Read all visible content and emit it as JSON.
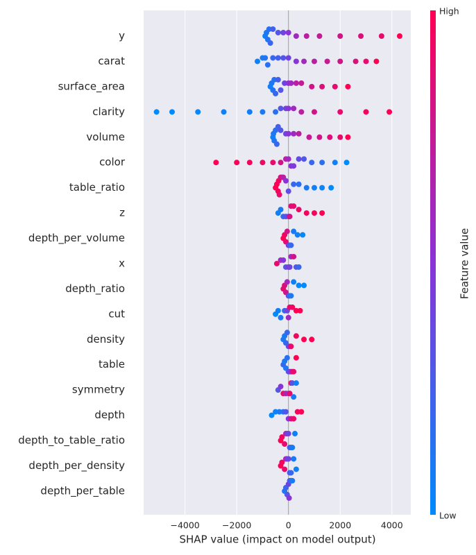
{
  "chart_data": {
    "type": "beeswarm",
    "xlabel": "SHAP value (impact on model output)",
    "xlim": [
      -5600,
      4730
    ],
    "xticks": [
      {
        "value": -4000,
        "label": "−4000"
      },
      {
        "value": -2000,
        "label": "−2000"
      },
      0,
      2000,
      4000
    ],
    "grid": true,
    "colormap": [
      "#008afb",
      "#8a33d8",
      "#ff0052"
    ],
    "colorbar": {
      "label": "Feature value",
      "high": "High",
      "low": "Low"
    },
    "features": [
      {
        "name": "y",
        "shap": [
          -900,
          -850,
          -800,
          -750,
          -700,
          -600,
          -400,
          -200,
          0,
          300,
          700,
          1200,
          2000,
          2800,
          3600,
          4300
        ],
        "feature_value": [
          0.05,
          0.1,
          0.12,
          0.15,
          0.2,
          0.25,
          0.3,
          0.4,
          0.5,
          0.6,
          0.7,
          0.75,
          0.8,
          0.85,
          0.9,
          1
        ]
      },
      {
        "name": "carat",
        "shap": [
          -1200,
          -1000,
          -900,
          -800,
          -600,
          -400,
          -200,
          0,
          300,
          600,
          1000,
          1500,
          2000,
          2600,
          3000,
          3400
        ],
        "feature_value": [
          0.05,
          0.1,
          0.12,
          0.15,
          0.2,
          0.25,
          0.3,
          0.4,
          0.5,
          0.6,
          0.7,
          0.75,
          0.8,
          0.85,
          0.9,
          1
        ]
      },
      {
        "name": "surface_area",
        "shap": [
          -700,
          -650,
          -600,
          -550,
          -500,
          -400,
          -300,
          -150,
          0,
          100,
          300,
          500,
          900,
          1300,
          1800,
          2300
        ],
        "feature_value": [
          0.05,
          0.1,
          0.12,
          0.15,
          0.2,
          0.25,
          0.3,
          0.4,
          0.5,
          0.6,
          0.7,
          0.75,
          0.8,
          0.85,
          0.9,
          1
        ]
      },
      {
        "name": "clarity",
        "shap": [
          -5100,
          -4500,
          -3500,
          -2500,
          -1500,
          -1000,
          -500,
          -300,
          -100,
          0,
          200,
          500,
          1000,
          2000,
          3000,
          3900
        ],
        "feature_value": [
          0,
          0,
          0.02,
          0.05,
          0.08,
          0.1,
          0.15,
          0.3,
          0.4,
          0.5,
          0.6,
          0.7,
          0.8,
          0.9,
          0.95,
          1
        ]
      },
      {
        "name": "volume",
        "shap": [
          -600,
          -580,
          -550,
          -500,
          -450,
          -400,
          -300,
          -100,
          0,
          200,
          400,
          800,
          1200,
          1600,
          2000,
          2300
        ],
        "feature_value": [
          0.05,
          0.1,
          0.12,
          0.15,
          0.2,
          0.25,
          0.3,
          0.4,
          0.5,
          0.6,
          0.7,
          0.75,
          0.8,
          0.85,
          0.9,
          1
        ]
      },
      {
        "name": "color",
        "shap": [
          -2800,
          -2000,
          -1500,
          -1000,
          -600,
          -300,
          -100,
          0,
          100,
          200,
          400,
          600,
          900,
          1300,
          1800,
          2250
        ],
        "feature_value": [
          1,
          0.98,
          0.95,
          0.93,
          0.9,
          0.8,
          0.7,
          0.6,
          0.5,
          0.45,
          0.35,
          0.3,
          0.2,
          0.15,
          0.05,
          0
        ]
      },
      {
        "name": "table_ratio",
        "shap": [
          -500,
          -450,
          -400,
          -380,
          -350,
          -300,
          -250,
          -200,
          -100,
          0,
          200,
          400,
          700,
          1000,
          1300,
          1650
        ],
        "feature_value": [
          1,
          1,
          0.95,
          0.95,
          0.9,
          0.85,
          0.8,
          0.7,
          0.5,
          0.35,
          0.2,
          0.15,
          0.1,
          0.05,
          0.02,
          0
        ]
      },
      {
        "name": "z",
        "shap": [
          -400,
          -300,
          -200,
          -100,
          0,
          50,
          100,
          200,
          400,
          700,
          1000,
          1300
        ],
        "feature_value": [
          0.05,
          0.1,
          0.2,
          0.3,
          0.4,
          0.8,
          0.85,
          0.9,
          0.92,
          0.95,
          0.97,
          1
        ]
      },
      {
        "name": "depth_per_volume",
        "shap": [
          -200,
          -150,
          -100,
          -50,
          0,
          50,
          100,
          200,
          350,
          550
        ],
        "feature_value": [
          1,
          0.95,
          0.9,
          0.8,
          0.5,
          0.3,
          0.2,
          0.1,
          0.05,
          0
        ]
      },
      {
        "name": "x",
        "shap": [
          -450,
          -300,
          -200,
          -100,
          0,
          50,
          100,
          200,
          300,
          400
        ],
        "feature_value": [
          0.9,
          0.6,
          0.5,
          0.3,
          0.5,
          0.4,
          0.6,
          0.8,
          0.3,
          0.2
        ]
      },
      {
        "name": "depth_ratio",
        "shap": [
          -200,
          -150,
          -100,
          -50,
          0,
          50,
          100,
          200,
          400,
          600
        ],
        "feature_value": [
          0.9,
          0.85,
          0.8,
          0.6,
          0.4,
          0.2,
          0.1,
          0.05,
          0.02,
          0
        ]
      },
      {
        "name": "cut",
        "shap": [
          -500,
          -400,
          -300,
          -150,
          -50,
          0,
          50,
          150,
          300,
          450
        ],
        "feature_value": [
          0,
          0.05,
          0.1,
          0.2,
          0.4,
          0.6,
          0.9,
          0.95,
          1,
          1
        ]
      },
      {
        "name": "density",
        "shap": [
          -200,
          -150,
          -100,
          -50,
          0,
          50,
          100,
          300,
          600,
          900
        ],
        "feature_value": [
          0.1,
          0.1,
          0.2,
          0.2,
          0.3,
          0.5,
          0.9,
          0.95,
          1,
          1
        ]
      },
      {
        "name": "table",
        "shap": [
          -200,
          -150,
          -100,
          -50,
          0,
          50,
          100,
          150,
          200,
          300
        ],
        "feature_value": [
          0.2,
          0.1,
          0.1,
          0.15,
          0.3,
          0.4,
          0.5,
          0.8,
          0.9,
          1
        ]
      },
      {
        "name": "symmetry",
        "shap": [
          -400,
          -300,
          -200,
          -100,
          0,
          50,
          100,
          150,
          200,
          300
        ],
        "feature_value": [
          0.3,
          0.5,
          0.9,
          0.7,
          0.5,
          0.9,
          0.95,
          0.3,
          0.1,
          0.05
        ]
      },
      {
        "name": "depth",
        "shap": [
          -650,
          -500,
          -350,
          -200,
          -100,
          0,
          100,
          200,
          350,
          500
        ],
        "feature_value": [
          0,
          0.05,
          0.1,
          0.15,
          0.3,
          0.5,
          0.8,
          0.9,
          0.95,
          1
        ]
      },
      {
        "name": "depth_to_table_ratio",
        "shap": [
          -300,
          -250,
          -150,
          -100,
          -50,
          0,
          50,
          100,
          150,
          250
        ],
        "feature_value": [
          1,
          0.95,
          0.9,
          0.7,
          0.5,
          0.4,
          0.3,
          0.2,
          0.1,
          0.05
        ]
      },
      {
        "name": "depth_per_density",
        "shap": [
          -300,
          -250,
          -150,
          -100,
          -50,
          0,
          50,
          100,
          200,
          300
        ],
        "feature_value": [
          1,
          0.95,
          0.9,
          0.7,
          0.5,
          0.4,
          0.3,
          0.2,
          0.1,
          0.05
        ]
      },
      {
        "name": "depth_per_table",
        "shap": [
          -150,
          -100,
          -50,
          0,
          25,
          50,
          100,
          150
        ],
        "feature_value": [
          0.1,
          0.2,
          0.3,
          0.4,
          0.5,
          0.3,
          0.2,
          0.1
        ]
      }
    ]
  }
}
